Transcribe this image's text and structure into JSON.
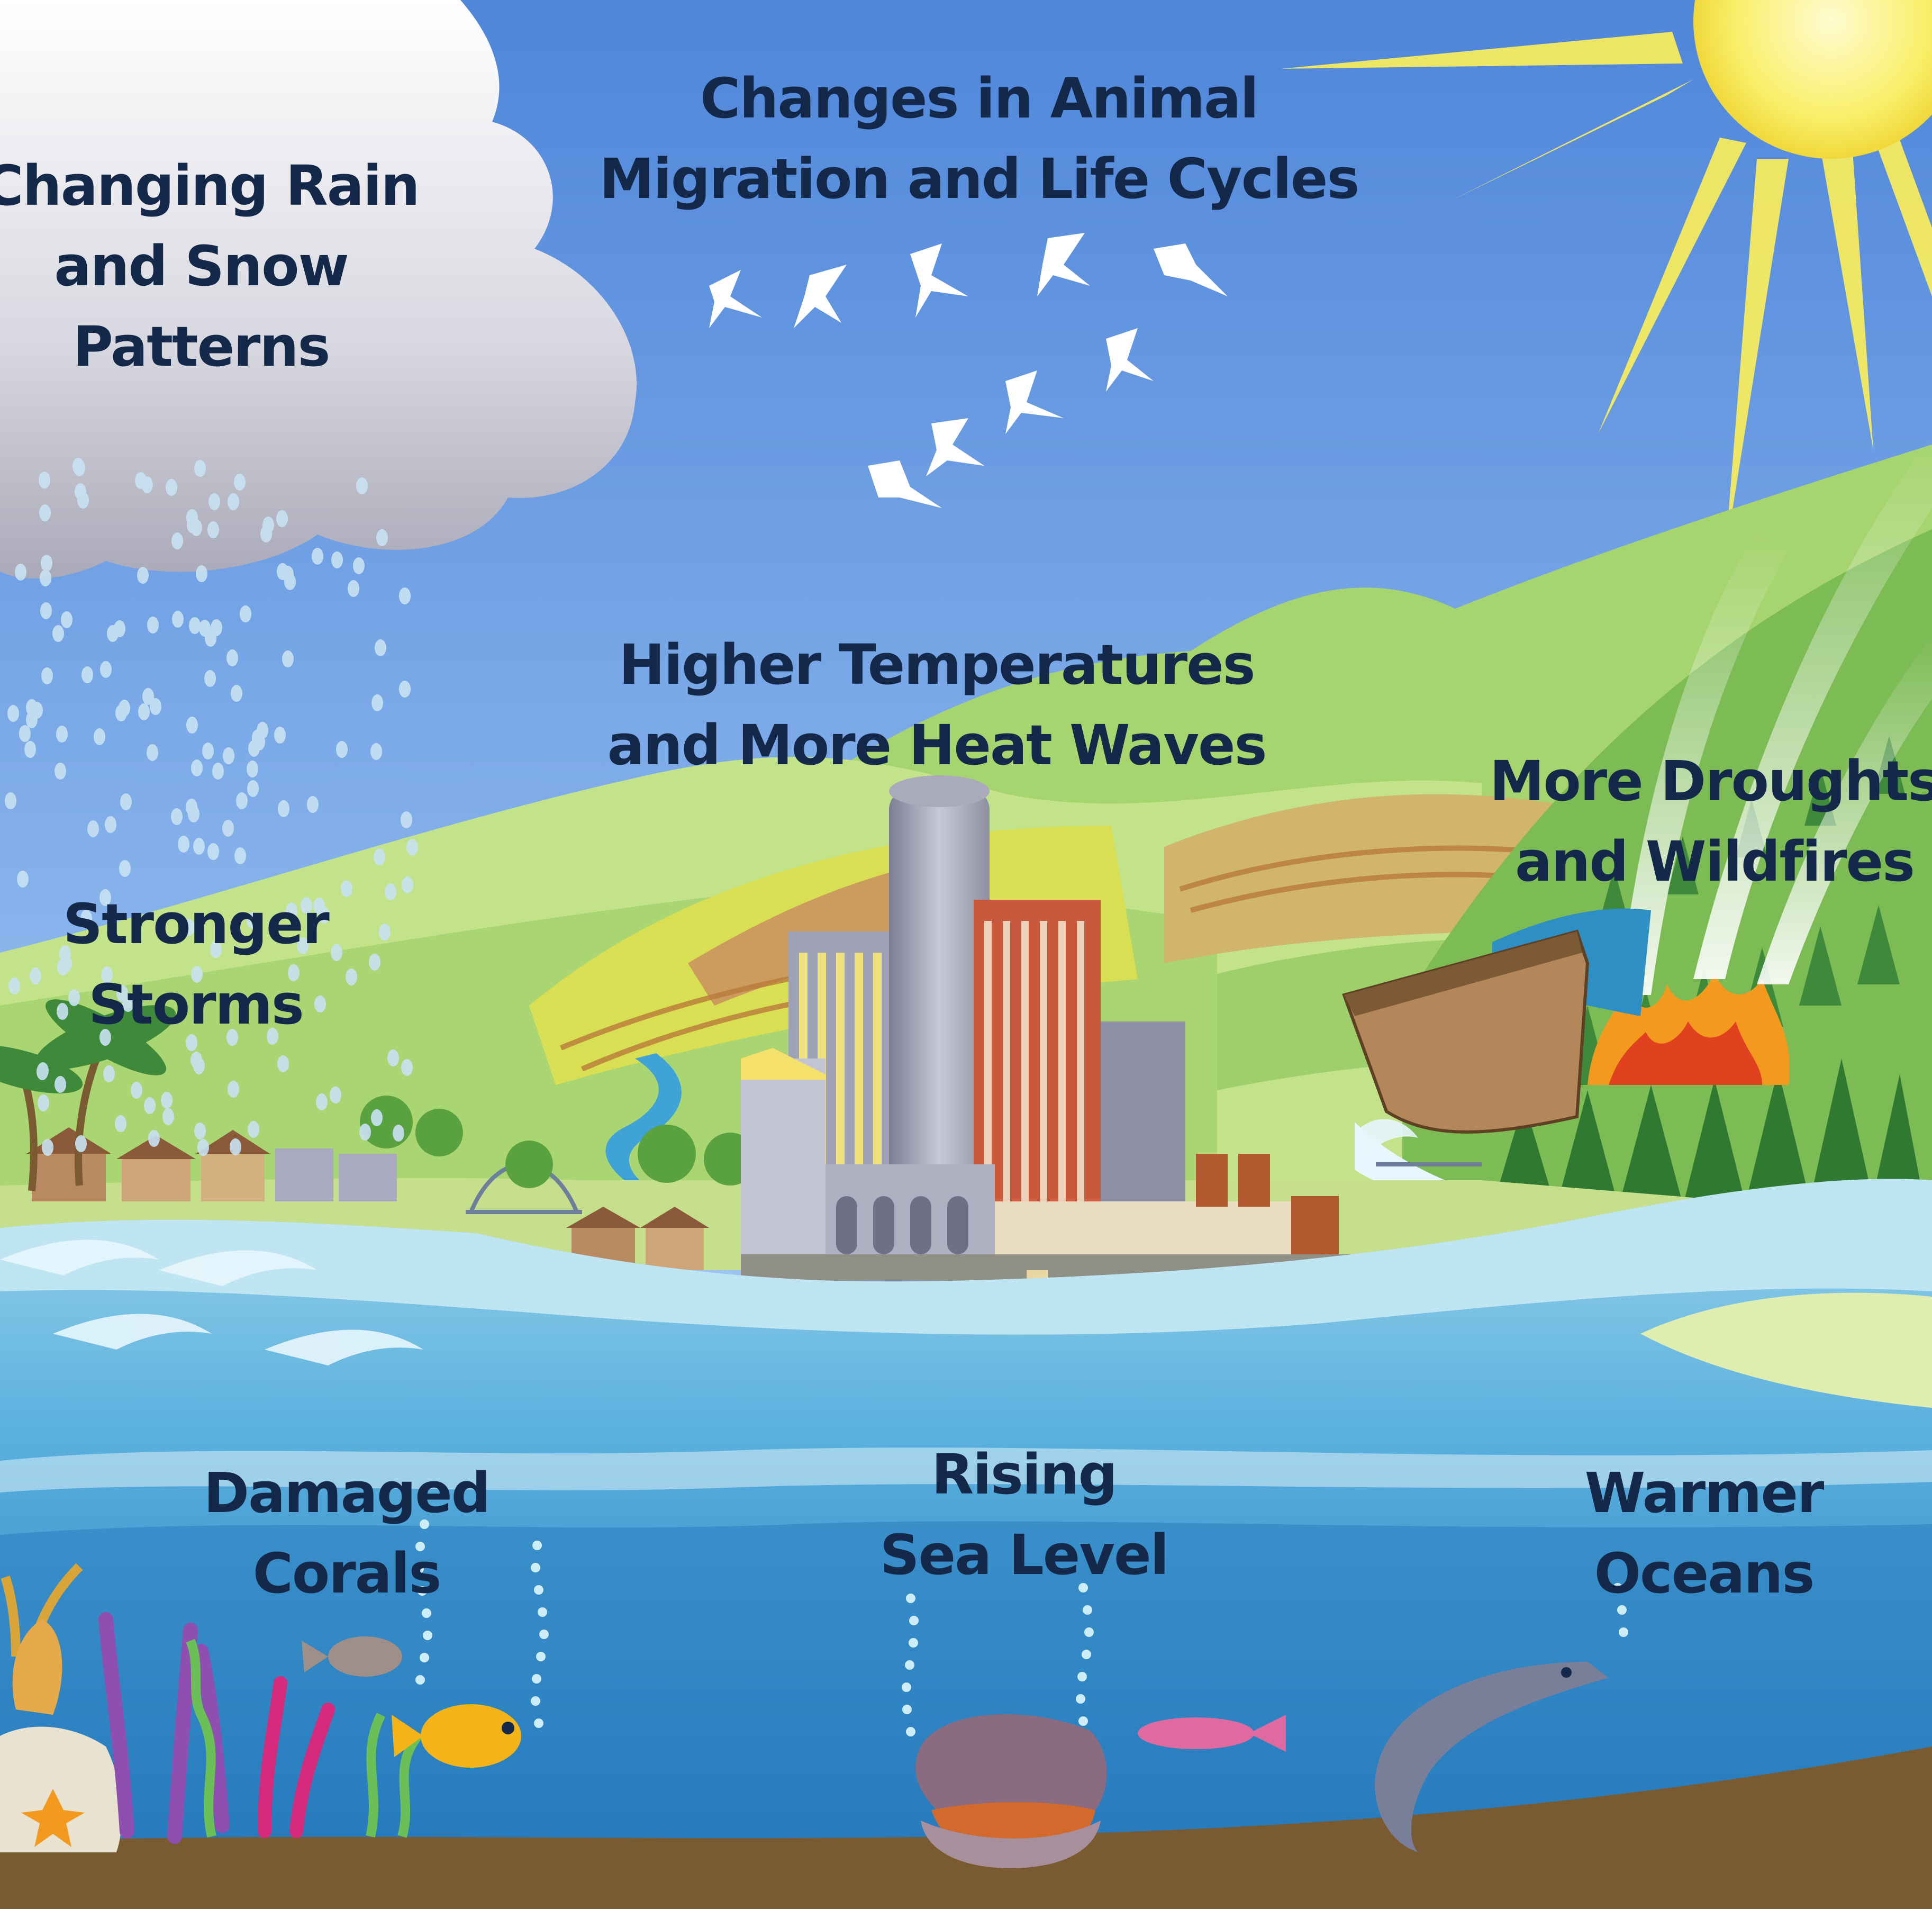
{
  "labels": {
    "rain_snow": [
      "Changing Rain",
      "and Snow",
      "Patterns"
    ],
    "animal_migration": [
      "Changes in Animal",
      "Migration and Life Cycles"
    ],
    "temperatures": [
      "Higher Temperatures",
      "and More Heat Waves"
    ],
    "droughts": [
      "More Droughts",
      "and Wildfires"
    ],
    "storms": [
      "Stronger",
      "Storms"
    ],
    "corals": [
      "Damaged",
      "Corals"
    ],
    "sea_level": [
      "Rising",
      "Sea Level"
    ],
    "oceans": [
      "Warmer",
      "Oceans"
    ]
  },
  "colors": {
    "sky_top": "#5a8fdc",
    "sky_bottom": "#a9cdf5",
    "sun": "#f7ec57",
    "cloud": "#cfcfd8",
    "hill_light": "#b9df7f",
    "hill_dark": "#8cc25a",
    "field_yellow": "#d8e05a",
    "field_tan": "#c9a36a",
    "ocean_surface": "#8fcfe8",
    "ocean_deep": "#1f78bc",
    "sea_floor": "#7a5a30",
    "label_text": "#14294a"
  },
  "icons": [
    "cloud-icon",
    "sun-icon",
    "bird-icon",
    "building-icon",
    "tree-icon",
    "fire-icon",
    "ship-icon",
    "fish-icon",
    "coral-icon",
    "clam-icon",
    "dam-icon"
  ]
}
